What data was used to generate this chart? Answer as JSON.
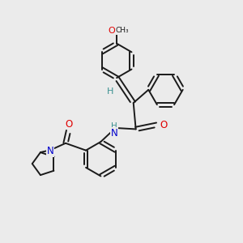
{
  "background_color": "#ebebeb",
  "bond_color": "#1a1a1a",
  "atom_colors": {
    "O": "#e00000",
    "N": "#0000cc",
    "H": "#3a9090",
    "C": "#1a1a1a"
  },
  "figsize": [
    3.0,
    3.0
  ],
  "dpi": 100,
  "lw": 1.4,
  "ring_r": 0.72,
  "xlim": [
    0,
    10
  ],
  "ylim": [
    0,
    10
  ]
}
